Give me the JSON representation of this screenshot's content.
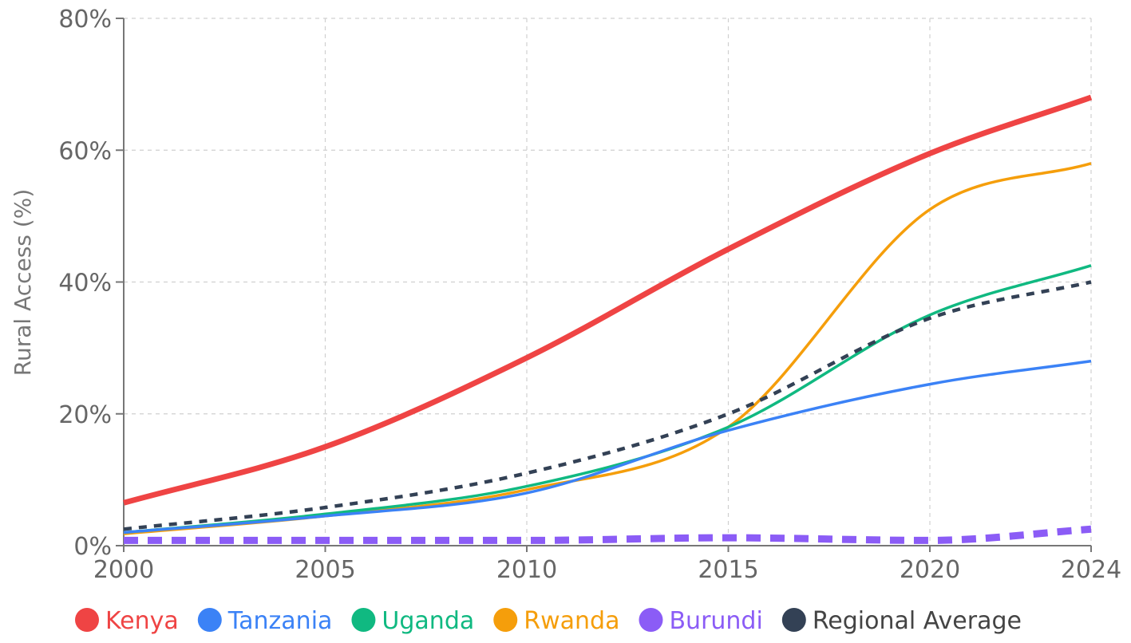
{
  "chart_data": {
    "type": "line",
    "ylabel": "Rural Access (%)",
    "xlim": [
      2000,
      2024
    ],
    "ylim": [
      0,
      80
    ],
    "x_ticks": [
      "2000",
      "2005",
      "2010",
      "2015",
      "2020",
      "2024"
    ],
    "y_ticks": [
      "0%",
      "20%",
      "40%",
      "60%",
      "80%"
    ],
    "grid": true,
    "legend_position": "bottom",
    "series": [
      {
        "name": "Kenya",
        "color": "#ef4444",
        "style": "solid-thick",
        "points": [
          [
            2000,
            6.5
          ],
          [
            2005,
            15
          ],
          [
            2010,
            28.5
          ],
          [
            2015,
            45
          ],
          [
            2020,
            59.5
          ],
          [
            2024,
            68
          ]
        ]
      },
      {
        "name": "Tanzania",
        "color": "#3b82f6",
        "style": "solid",
        "points": [
          [
            2000,
            2
          ],
          [
            2005,
            4.5
          ],
          [
            2010,
            8
          ],
          [
            2015,
            17.5
          ],
          [
            2020,
            24.5
          ],
          [
            2024,
            28
          ]
        ]
      },
      {
        "name": "Uganda",
        "color": "#10b981",
        "style": "solid",
        "points": [
          [
            2000,
            2
          ],
          [
            2005,
            4.8
          ],
          [
            2010,
            9
          ],
          [
            2015,
            18
          ],
          [
            2020,
            35
          ],
          [
            2024,
            42.5
          ]
        ]
      },
      {
        "name": "Rwanda",
        "color": "#f59e0b",
        "style": "solid",
        "points": [
          [
            2000,
            1.8
          ],
          [
            2005,
            4.5
          ],
          [
            2010,
            8.5
          ],
          [
            2015,
            18
          ],
          [
            2020,
            51
          ],
          [
            2024,
            58
          ]
        ]
      },
      {
        "name": "Burundi",
        "color": "#8b5cf6",
        "style": "dashed-thick",
        "points": [
          [
            2000,
            0.8
          ],
          [
            2005,
            0.8
          ],
          [
            2010,
            0.8
          ],
          [
            2015,
            1.2
          ],
          [
            2020,
            0.8
          ],
          [
            2024,
            2.5
          ]
        ]
      },
      {
        "name": "Regional Average",
        "color": "#334155",
        "style": "dashed",
        "points": [
          [
            2000,
            2.5
          ],
          [
            2005,
            5.8
          ],
          [
            2010,
            11
          ],
          [
            2015,
            20
          ],
          [
            2020,
            34.5
          ],
          [
            2024,
            40
          ]
        ]
      }
    ]
  }
}
